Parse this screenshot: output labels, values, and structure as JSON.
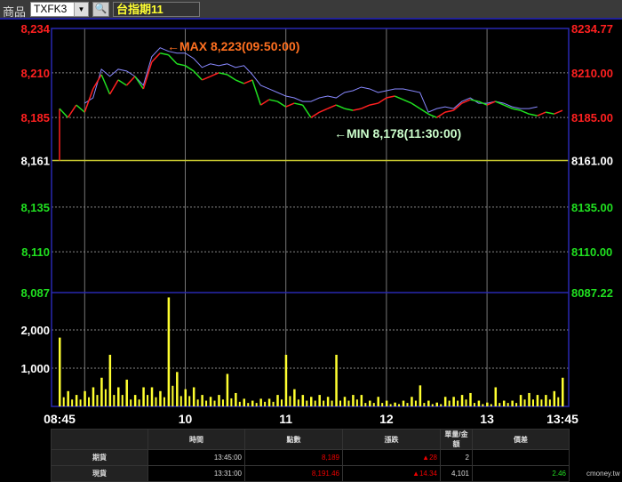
{
  "toolbar": {
    "product_label": "商品",
    "symbol": "TXFK3",
    "search_icon": "search-icon",
    "instrument_name": "台指期11"
  },
  "chart_data": {
    "type": "line",
    "left_axis_ticks": [
      "8,234",
      "8,210",
      "8,185",
      "8,161",
      "8,135",
      "8,110",
      "8,087"
    ],
    "right_axis_ticks": [
      "8234.77",
      "8210.00",
      "8185.00",
      "8161.00",
      "8135.00",
      "8110.00",
      "8087.22"
    ],
    "tick_values": [
      8234.77,
      8210,
      8185,
      8161,
      8135,
      8110,
      8087.22
    ],
    "reference_price": 8161,
    "volume_ticks": [
      "2,000",
      "1,000"
    ],
    "volume_tick_values": [
      2000,
      1000
    ],
    "x_ticks": [
      "08:45",
      "10",
      "11",
      "12",
      "13",
      "13:45"
    ],
    "x_tick_minutes": [
      0,
      75,
      135,
      195,
      255,
      300
    ],
    "max_label": "←MAX 8,223(09:50:00)",
    "min_label": "←MIN 8,178(11:30:00)",
    "colors": {
      "up": "#ff2020",
      "down": "#20e020",
      "index": "#8888ff",
      "volume": "#ffff30",
      "reference": "#c8c830",
      "frame": "#2828b0",
      "max_label": "#ff7020",
      "min_label": "#ccffcc"
    },
    "series": [
      {
        "interval_min": 5,
        "start": "08:45",
        "values": [
          8190,
          8185,
          8192,
          8188,
          8201,
          8209,
          8198,
          8206,
          8203,
          8208,
          8201,
          8216,
          8221,
          8220,
          8215,
          8214,
          8211,
          8206,
          8208,
          8210,
          8209,
          8206,
          8204,
          8206,
          8192,
          8195,
          8194,
          8191,
          8193,
          8192,
          8185,
          8188,
          8190,
          8192,
          8190,
          8189,
          8190,
          8192,
          8193,
          8196,
          8197,
          8195,
          8193,
          8190,
          8187,
          8185,
          8188,
          8189,
          8193,
          8195,
          8194,
          8192,
          8194,
          8192,
          8190,
          8189,
          8187,
          8186,
          8188,
          8187,
          8189
        ]
      },
      {
        "interval_min": 5,
        "start": "09:00",
        "values": [
          8193,
          8196,
          8212,
          8208,
          8212,
          8211,
          8208,
          8203,
          8219,
          8224,
          8222,
          8221,
          8221,
          8218,
          8213,
          8215,
          8214,
          8215,
          8213,
          8214,
          8209,
          8203,
          8201,
          8199,
          8197,
          8196,
          8194,
          8194,
          8196,
          8197,
          8196,
          8199,
          8200,
          8202,
          8201,
          8199,
          8200,
          8201,
          8201,
          8200,
          8199,
          8188,
          8190,
          8191,
          8190,
          8194,
          8196,
          8193,
          8193,
          8194,
          8193,
          8191,
          8190,
          8190,
          8191
        ]
      }
    ],
    "volume": {
      "interval_min": 5,
      "start": "08:45",
      "values": [
        1800,
        400,
        300,
        400,
        500,
        750,
        1350,
        500,
        700,
        300,
        500,
        500,
        400,
        2850,
        900,
        450,
        500,
        300,
        250,
        300,
        850,
        350,
        200,
        150,
        200,
        200,
        300,
        1350,
        450,
        300,
        250,
        300,
        250,
        1350,
        250,
        300,
        300,
        150,
        250,
        150,
        100,
        150,
        250,
        550,
        150,
        100,
        250,
        250,
        300,
        350,
        150,
        100,
        500,
        150,
        150,
        300,
        350,
        300,
        300,
        400,
        750
      ]
    }
  },
  "table": {
    "headers": [
      "",
      "時間",
      "點數",
      "漲跌",
      "單量/金額",
      "價差"
    ],
    "rows": [
      {
        "label": "期貨",
        "time": "13:45:00",
        "price": "8,189",
        "change": "▲28",
        "volume": "2",
        "spread": ""
      },
      {
        "label": "現貨",
        "time": "13:31:00",
        "price": "8,191.46",
        "change": "▲14.34",
        "volume": "4,101",
        "spread": "2.46"
      }
    ]
  },
  "watermark": "cmoney.tw"
}
